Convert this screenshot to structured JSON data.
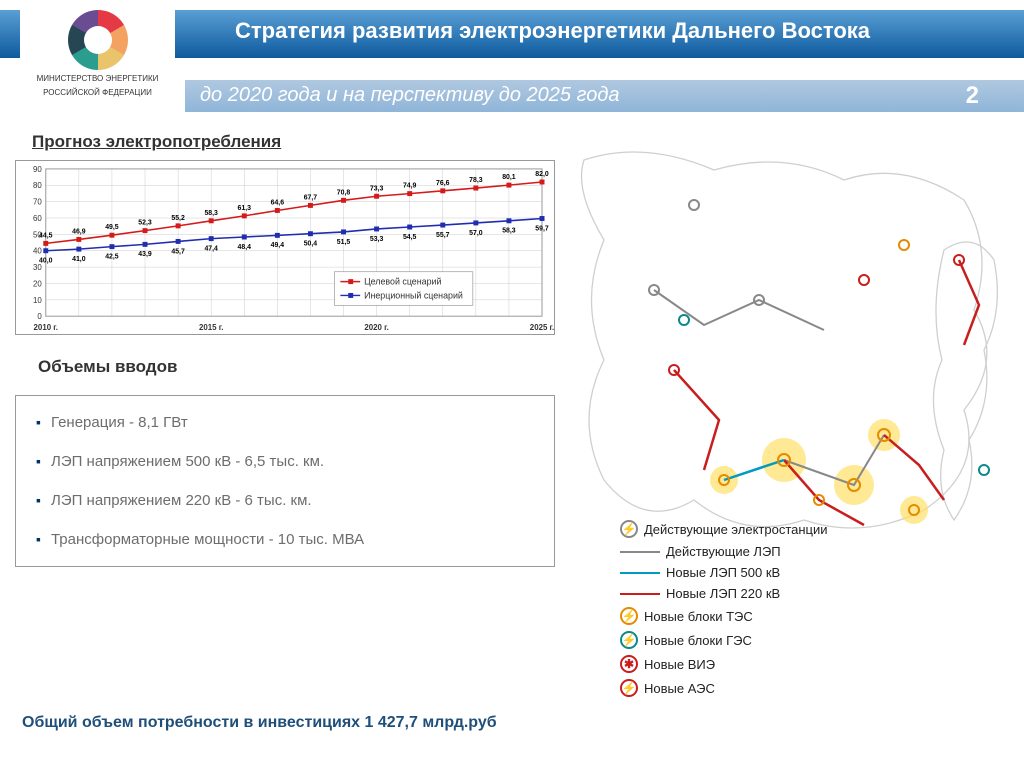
{
  "header": {
    "title": "Стратегия развития электроэнергетики Дальнего Востока",
    "subtitle": "до 2020 года и на перспективу до 2025 года",
    "page_number": "2",
    "ministry_line1": "МИНИСТЕРСТВО ЭНЕРГЕТИКИ",
    "ministry_line2": "РОССИЙСКОЙ ФЕДЕРАЦИИ"
  },
  "section1_title": "Прогноз электропотребления",
  "chart": {
    "type": "line",
    "x_labels": [
      "2010 г.",
      "2015 г.",
      "2020 г.",
      "2025 г."
    ],
    "years": [
      2010,
      2011,
      2012,
      2013,
      2014,
      2015,
      2016,
      2017,
      2018,
      2019,
      2020,
      2021,
      2022,
      2023,
      2024,
      2025
    ],
    "ylim": [
      0,
      90
    ],
    "ytick_step": 10,
    "series": [
      {
        "name": "Целевой сценарий",
        "color": "#d61a1a",
        "marker": "square",
        "values": [
          44.5,
          46.9,
          49.5,
          52.3,
          55.2,
          58.3,
          61.3,
          64.6,
          67.7,
          70.8,
          73.3,
          74.9,
          76.6,
          78.3,
          80.1,
          82.0
        ]
      },
      {
        "name": "Инерционный сценарий",
        "color": "#1f2eb0",
        "marker": "square",
        "values": [
          40.0,
          41.0,
          42.5,
          43.9,
          45.7,
          47.4,
          48.4,
          49.4,
          50.4,
          51.5,
          53.3,
          54.5,
          55.7,
          57.0,
          58.3,
          59.7
        ]
      }
    ],
    "grid_color": "#cccccc",
    "border_color": "#999999",
    "label_fontsize": 7,
    "axis_fontsize": 8,
    "legend_fontsize": 9
  },
  "section2_title": "Объемы вводов",
  "volumes": [
    "Генерация - 8,1 ГВт",
    "ЛЭП напряжением 500 кВ - 6,5 тыс. км.",
    "ЛЭП напряжением 220 кВ - 6 тыс. км.",
    "Трансформаторные мощности - 10 тыс. МВА"
  ],
  "investment": "Общий объем потребности в инвестициях 1 427,7 млрд.руб",
  "map_legend": {
    "existing_stations": "Действующие электростанции",
    "existing_lep": "Действующие ЛЭП",
    "new_lep500": "Новые ЛЭП 500 кВ",
    "new_lep220": "Новые ЛЭП 220 кВ",
    "new_tes": "Новые блоки ТЭС",
    "new_ges": "Новые блоки ГЭС",
    "new_vie": "Новые ВИЭ",
    "new_aes": "Новые АЭС",
    "colors": {
      "existing_station": "#888888",
      "existing_lep": "#888888",
      "lep500": "#009bbf",
      "lep220": "#c81e1e",
      "tes": "#e68a00",
      "ges": "#0a8a8a",
      "vie": "#c81e1e",
      "aes": "#c81e1e",
      "city_glow": "#ffe066"
    }
  }
}
